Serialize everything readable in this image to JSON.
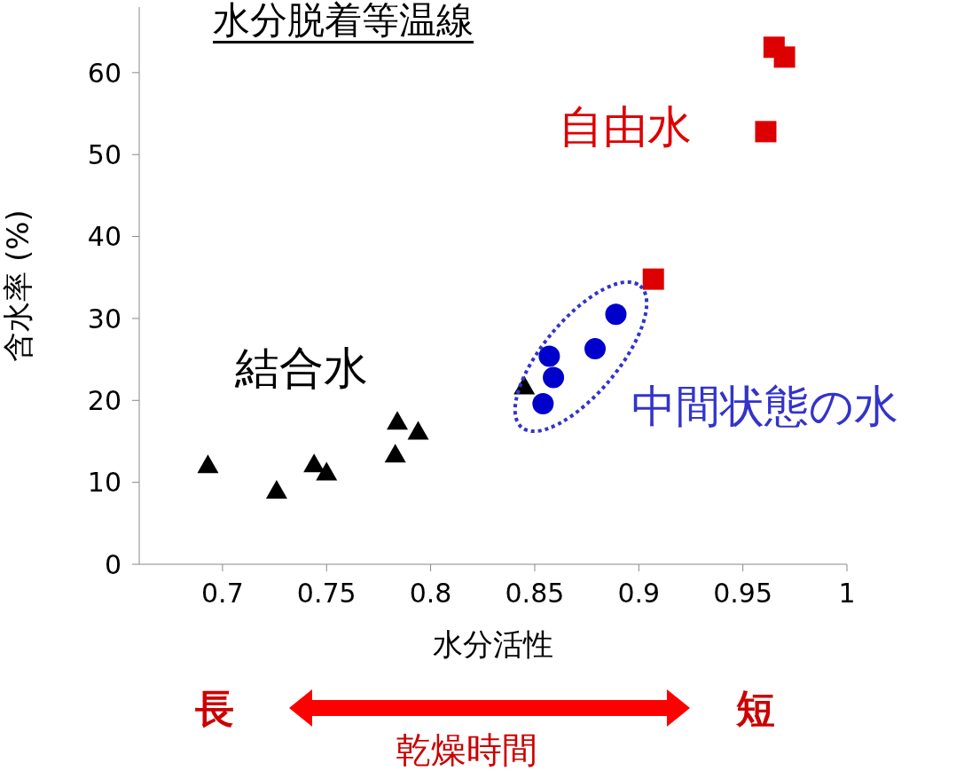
{
  "chart_data": {
    "type": "scatter",
    "title": "水分脱着等温線",
    "xlabel": "水分活性",
    "ylabel": "含水率 (%)",
    "xlim": [
      0.66,
      1
    ],
    "xticks": [
      {
        "value": 0.7,
        "label": "0.7"
      },
      {
        "value": 0.75,
        "label": "0.75"
      },
      {
        "value": 0.8,
        "label": "0.8"
      },
      {
        "value": 0.85,
        "label": "0.85"
      },
      {
        "value": 0.9,
        "label": "0.9"
      },
      {
        "value": 0.95,
        "label": "0.95"
      },
      1
    ],
    "ylim": [
      0,
      68
    ],
    "yticks": [
      0,
      10,
      20,
      30,
      40,
      50,
      60
    ],
    "series": [
      {
        "name": "結合水",
        "color": "#000000",
        "marker": "triangle",
        "x": [
          0.693,
          0.726,
          0.744,
          0.75,
          0.784,
          0.794,
          0.783,
          0.845
        ],
        "values": [
          12.1,
          9.0,
          12.2,
          11.2,
          17.4,
          16.2,
          13.4,
          21.7
        ]
      },
      {
        "name": "中間状態の水",
        "color": "#0000cc",
        "marker": "circle",
        "x": [
          0.889,
          0.879,
          0.857,
          0.859,
          0.854
        ],
        "values": [
          30.5,
          26.3,
          25.4,
          22.8,
          19.6
        ]
      },
      {
        "name": "自由水",
        "color": "#dd0000",
        "marker": "square",
        "x": [
          0.965,
          0.97,
          0.961,
          0.907
        ],
        "values": [
          63.1,
          61.9,
          52.8,
          34.8
        ]
      }
    ],
    "annotations": [
      "長",
      "短",
      "乾燥時間"
    ]
  }
}
